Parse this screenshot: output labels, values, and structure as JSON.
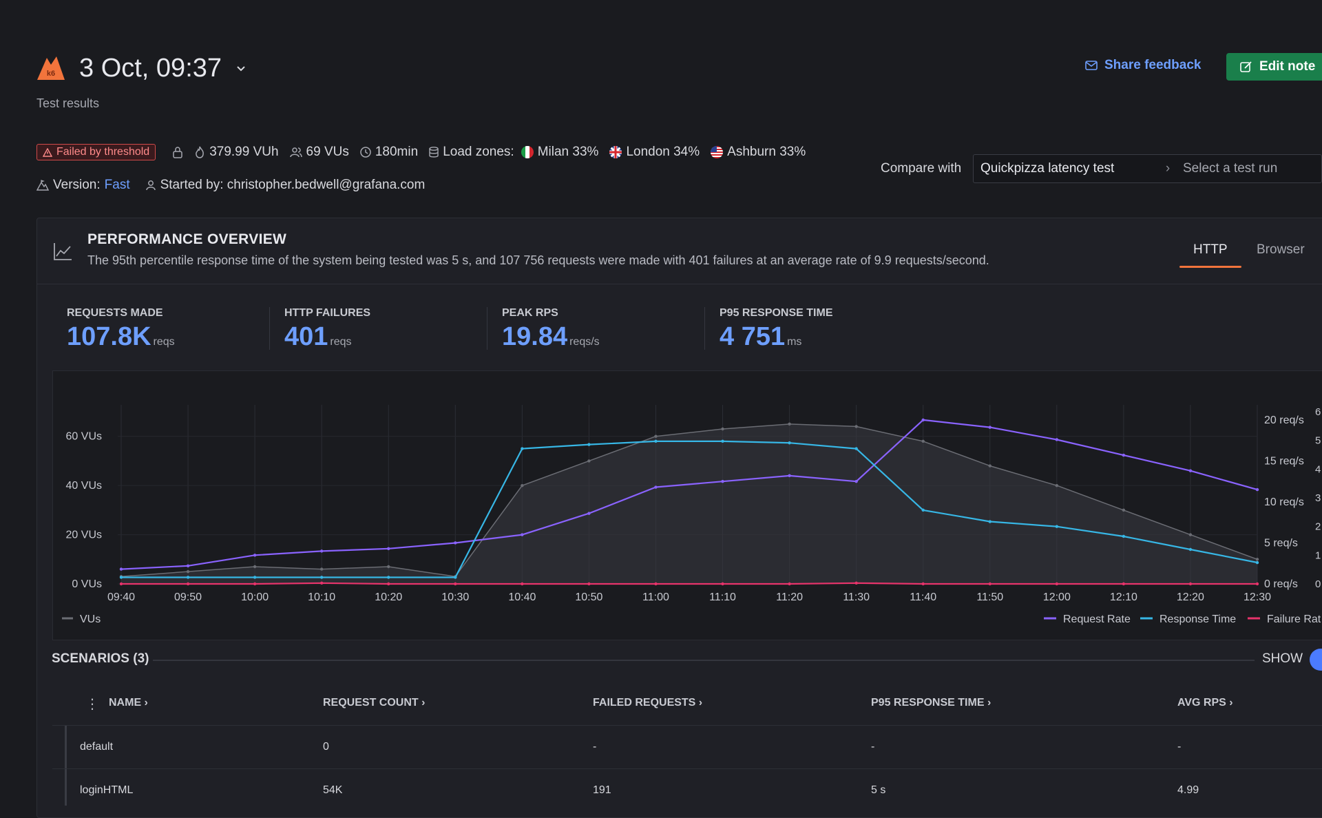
{
  "header": {
    "title": "3 Oct, 09:37",
    "subtitle": "Test results",
    "share_feedback": "Share feedback",
    "edit_note": "Edit note"
  },
  "meta": {
    "status_badge": "Failed by threshold",
    "vuh": "379.99 VUh",
    "vus": "69 VUs",
    "duration": "180min",
    "load_zones_label": "Load zones:",
    "zones": [
      "Milan 33%",
      "London 34%",
      "Ashburn 33%"
    ],
    "version_label": "Version:",
    "version_value": "Fast",
    "started_by": "Started by: christopher.bedwell@grafana.com"
  },
  "compare": {
    "label": "Compare with",
    "selected": "Quickpizza latency test",
    "placeholder": "Select a test run"
  },
  "overview": {
    "title": "PERFORMANCE OVERVIEW",
    "description": "The 95th percentile response time of the system being tested was 5 s, and 107 756 requests were made with 401 failures at an average rate of 9.9 requests/second.",
    "tabs": [
      "HTTP",
      "Browser"
    ]
  },
  "stats": [
    {
      "label": "REQUESTS MADE",
      "value": "107.8K",
      "unit": "reqs"
    },
    {
      "label": "HTTP FAILURES",
      "value": "401",
      "unit": "reqs"
    },
    {
      "label": "PEAK RPS",
      "value": "19.84",
      "unit": "reqs/s"
    },
    {
      "label": "P95 RESPONSE TIME",
      "value": "4 751",
      "unit": "ms"
    }
  ],
  "chart_data": {
    "type": "line",
    "x": [
      "09:40",
      "09:50",
      "10:00",
      "10:10",
      "10:20",
      "10:30",
      "10:40",
      "10:50",
      "11:00",
      "11:10",
      "11:20",
      "11:30",
      "11:40",
      "11:50",
      "12:00",
      "12:10",
      "12:20",
      "12:30"
    ],
    "left_axis_ticks": [
      "0 VUs",
      "20 VUs",
      "40 VUs",
      "60 VUs"
    ],
    "right_axis_ticks": [
      "0 req/s",
      "5 req/s",
      "10 req/s",
      "15 req/s",
      "20 req/s"
    ],
    "far_right_ticks": [
      "0",
      "1",
      "2",
      "3",
      "4",
      "5",
      "6"
    ],
    "ylim_left": [
      0,
      70
    ],
    "ylim_right": [
      0,
      21
    ],
    "series": [
      {
        "name": "VUs",
        "axis": "left",
        "color": "#6b6d74",
        "values": [
          3,
          5,
          7,
          6,
          7,
          3,
          40,
          50,
          60,
          63,
          65,
          64,
          58,
          48,
          40,
          30,
          20,
          10
        ]
      },
      {
        "name": "Request Rate",
        "axis": "right",
        "color": "#8a63ff",
        "values": [
          1.8,
          2.2,
          3.5,
          4.0,
          4.3,
          5.0,
          6.0,
          8.6,
          11.8,
          12.5,
          13.2,
          12.5,
          20.0,
          19.1,
          17.6,
          15.7,
          13.8,
          11.5
        ]
      },
      {
        "name": "Response Time",
        "axis": "right",
        "color": "#37b7e6",
        "values": [
          0.8,
          0.8,
          0.8,
          0.8,
          0.8,
          0.8,
          16.5,
          17.0,
          17.4,
          17.4,
          17.2,
          16.5,
          9.0,
          7.6,
          7.0,
          5.8,
          4.2,
          2.6
        ]
      },
      {
        "name": "Failure Rate",
        "axis": "right",
        "color": "#e8336b",
        "values": [
          0,
          0,
          0,
          0.1,
          0,
          0,
          0,
          0,
          0,
          0,
          0,
          0.1,
          0,
          0,
          0,
          0,
          0,
          0
        ]
      }
    ],
    "legend_left": [
      "VUs"
    ],
    "legend_right": [
      "Request Rate",
      "Response Time",
      "Failure Rat"
    ],
    "grid": true
  },
  "scenarios": {
    "title": "SCENARIOS (3)",
    "show_label": "SHOW",
    "columns": [
      "NAME",
      "REQUEST COUNT",
      "FAILED REQUESTS",
      "P95 RESPONSE TIME",
      "AVG RPS"
    ],
    "rows": [
      {
        "name": "default",
        "request_count": "0",
        "failed": "-",
        "p95": "-",
        "avg_rps": "-"
      },
      {
        "name": "loginHTML",
        "request_count": "54K",
        "failed": "191",
        "p95": "5 s",
        "avg_rps": "4.99"
      }
    ]
  }
}
